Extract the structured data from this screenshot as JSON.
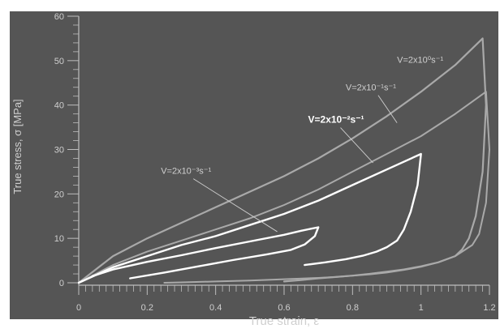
{
  "colors": {
    "background": "#ffffff",
    "plot_bg": "#555555",
    "axis": "#bdbdbd",
    "text": "#cfcfcf",
    "gray_curve": "#a9a9a9",
    "white_curve": "#ffffff"
  },
  "chart_data": {
    "type": "line",
    "title": "",
    "xlabel": "True strain, ε",
    "ylabel": "True stress, σ [MPa]",
    "xlim": [
      0,
      1.2
    ],
    "ylim": [
      0,
      60
    ],
    "xticks": [
      "0",
      "0.2",
      "0.4",
      "0.6",
      "0.8",
      "1",
      "1.2"
    ],
    "xtick_values": [
      0,
      0.2,
      0.4,
      0.6,
      0.8,
      1.0,
      1.2
    ],
    "yticks": [
      "0",
      "10",
      "20",
      "30",
      "40",
      "50",
      "60"
    ],
    "ytick_values": [
      0,
      10,
      20,
      30,
      40,
      50,
      60
    ],
    "grid": false,
    "legend": "none",
    "series": [
      {
        "label": "V=2x10⁰s⁻¹",
        "color": "gray",
        "width": 2.2,
        "x": [
          0,
          0.1,
          0.2,
          0.3,
          0.4,
          0.5,
          0.6,
          0.7,
          0.8,
          0.9,
          1.0,
          1.1,
          1.18,
          1.19,
          1.18,
          1.16,
          1.14,
          1.12,
          1.1,
          1.05,
          1.0,
          0.95,
          0.9,
          0.85,
          0.8,
          0.75,
          0.7,
          0.65,
          0.6
        ],
        "y": [
          0,
          6,
          10,
          13.5,
          17,
          20.5,
          24,
          28,
          32.5,
          37.5,
          43,
          49,
          55,
          40,
          25,
          15,
          10,
          7.5,
          6,
          4.6,
          3.7,
          3,
          2.5,
          2,
          1.6,
          1.3,
          1,
          0.6,
          0.3
        ]
      },
      {
        "label": "V=2x10⁻¹s⁻¹",
        "color": "gray",
        "width": 2.0,
        "x": [
          0,
          0.1,
          0.2,
          0.3,
          0.4,
          0.5,
          0.6,
          0.7,
          0.8,
          0.9,
          1.0,
          1.1,
          1.19,
          1.2,
          1.19,
          1.17,
          1.15,
          1.12,
          1.1,
          1.05,
          1.0,
          0.95,
          0.9,
          0.85,
          0.8,
          0.75,
          0.7,
          0.6,
          0.5,
          0.4,
          0.3,
          0.25
        ],
        "y": [
          0,
          4,
          7,
          9.5,
          12,
          14.5,
          17.5,
          21,
          25,
          29,
          33,
          38,
          43,
          30,
          18,
          11,
          8.5,
          7,
          6,
          4.6,
          3.6,
          2.9,
          2.3,
          1.9,
          1.6,
          1.3,
          1.1,
          0.8,
          0.5,
          0.3,
          0.1,
          0
        ]
      },
      {
        "label": "V=2x10⁻²s⁻¹",
        "color": "white",
        "width": 2.4,
        "x": [
          0,
          0.1,
          0.2,
          0.3,
          0.4,
          0.5,
          0.6,
          0.7,
          0.8,
          0.9,
          1.0,
          0.99,
          0.97,
          0.95,
          0.93,
          0.9,
          0.87,
          0.83,
          0.78,
          0.72,
          0.66
        ],
        "y": [
          0,
          3.5,
          6,
          8.5,
          10.5,
          13,
          15.5,
          18.5,
          22,
          25.5,
          29,
          22,
          16,
          12,
          9.5,
          8,
          7,
          6.1,
          5.3,
          4.6,
          4
        ]
      },
      {
        "label": "V=2x10⁻³s⁻¹",
        "color": "white",
        "width": 2.4,
        "x": [
          0.04,
          0.1,
          0.2,
          0.3,
          0.4,
          0.5,
          0.6,
          0.65,
          0.7,
          0.69,
          0.66,
          0.62,
          0.55,
          0.45,
          0.35,
          0.25,
          0.15
        ],
        "y": [
          1.5,
          3,
          4.7,
          6.2,
          7.8,
          9.3,
          10.8,
          11.7,
          12.5,
          10.5,
          8.6,
          7.4,
          6.4,
          5.1,
          3.7,
          2.3,
          1
        ]
      }
    ],
    "annotations": [
      {
        "text": "V=2x10⁰s⁻¹",
        "label_x": 0.93,
        "label_y": 49.5,
        "arrow_x": null,
        "arrow_y": null,
        "color": "gray",
        "bold": false
      },
      {
        "text": "V=2x10⁻¹s⁻¹",
        "label_x": 0.78,
        "label_y": 43.3,
        "arrow_x": 0.93,
        "arrow_y": 36,
        "color": "gray",
        "bold": false
      },
      {
        "text": "V=2x10⁻²s⁻¹",
        "label_x": 0.67,
        "label_y": 36.0,
        "arrow_x": 0.86,
        "arrow_y": 27,
        "color": "white",
        "bold": true
      },
      {
        "text": "V=2x10⁻³s⁻¹",
        "label_x": 0.24,
        "label_y": 24.5,
        "arrow_x": 0.58,
        "arrow_y": 11.5,
        "color": "gray",
        "bold": false
      }
    ]
  }
}
